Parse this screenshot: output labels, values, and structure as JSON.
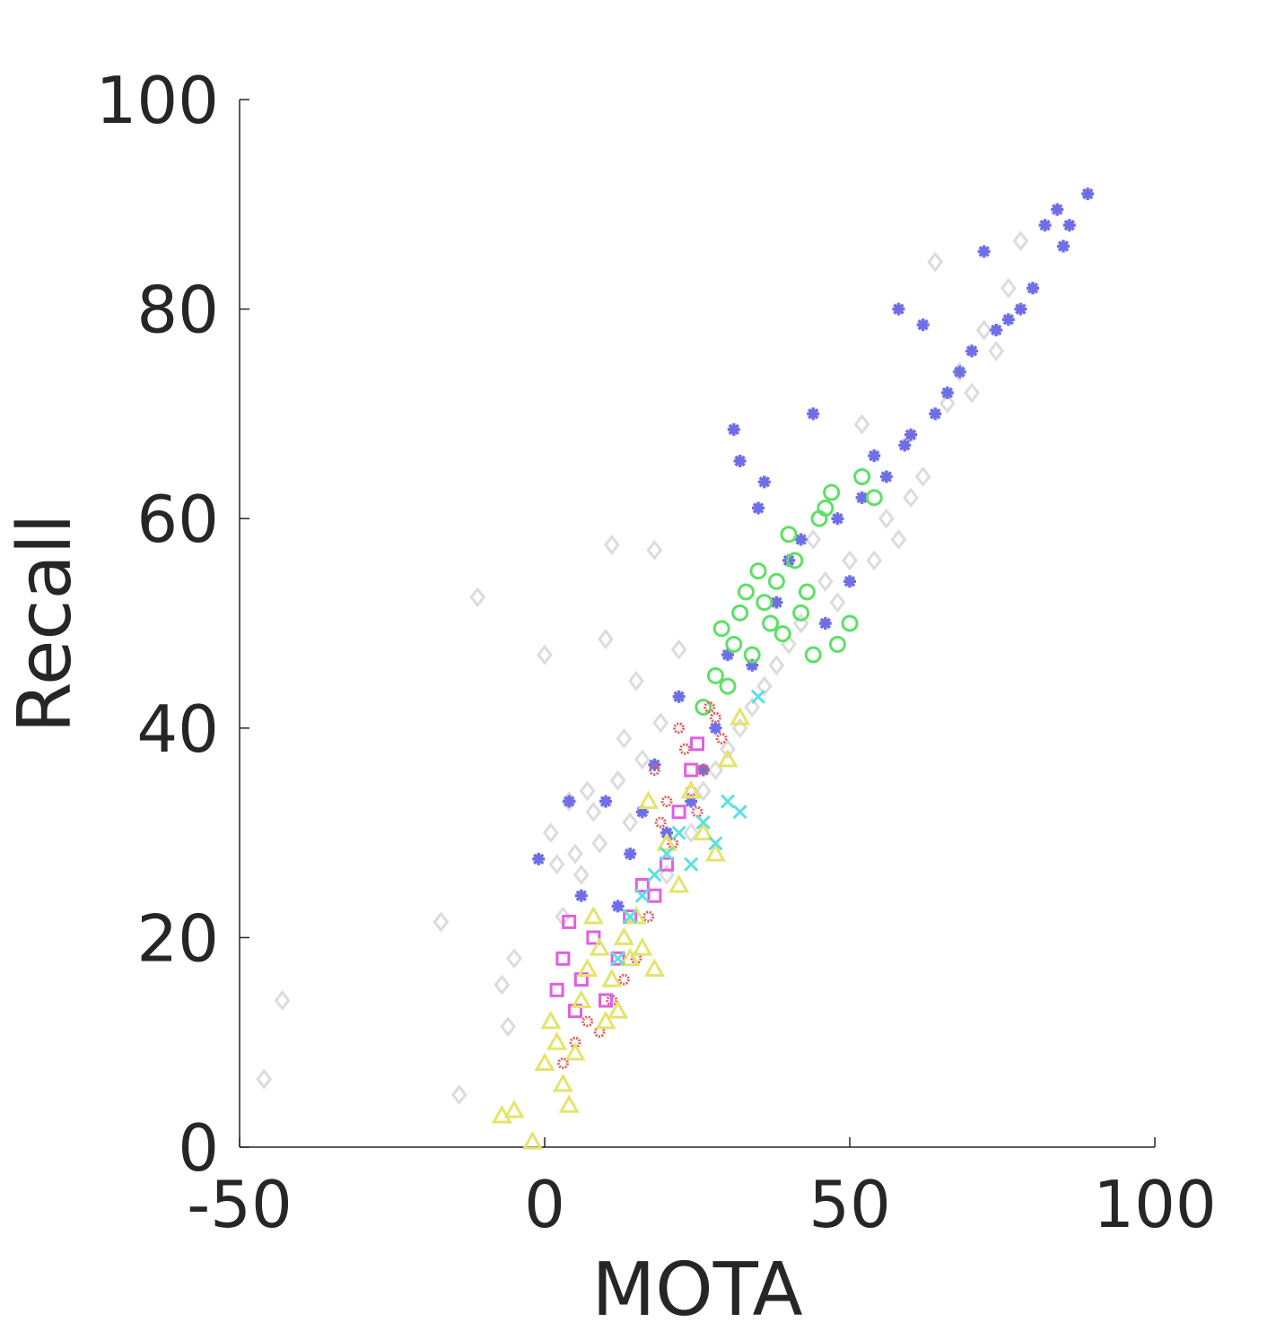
{
  "chart_data": {
    "type": "scatter",
    "title": "",
    "xlabel": "MOTA",
    "ylabel": "Recall",
    "xlim": [
      -50,
      100
    ],
    "ylim": [
      0,
      100
    ],
    "xticks": [
      -50,
      0,
      50,
      100
    ],
    "xtick_labels": [
      "-50",
      "0",
      "50",
      "100"
    ],
    "yticks": [
      0,
      20,
      40,
      60,
      80,
      100
    ],
    "ytick_labels": [
      "0",
      "20",
      "40",
      "60",
      "80",
      "100"
    ],
    "grid": false,
    "legend": "none",
    "series": [
      {
        "marker": "diamond",
        "color": "#dcdcdc",
        "x": [
          -46,
          -43,
          -17,
          -14,
          -11,
          -7,
          -6,
          -5,
          0,
          1,
          2,
          3,
          4,
          5,
          6,
          7,
          8,
          9,
          10,
          11,
          12,
          13,
          14,
          15,
          16,
          18,
          19,
          20,
          22,
          24,
          26,
          28,
          30,
          32,
          34,
          36,
          38,
          40,
          42,
          44,
          46,
          48,
          50,
          52,
          54,
          56,
          58,
          60,
          62,
          64,
          66,
          68,
          70,
          72,
          74,
          76,
          78
        ],
        "y": [
          6.5,
          14,
          21.5,
          5,
          52.5,
          15.5,
          11.5,
          18,
          47,
          30,
          27,
          22,
          33,
          28,
          26,
          34,
          32,
          29,
          48.5,
          57.5,
          35,
          39,
          31,
          44.5,
          37,
          57,
          40.5,
          26,
          47.5,
          30,
          34,
          36,
          38,
          40,
          42,
          44,
          46,
          48,
          50,
          58,
          54,
          52,
          56,
          69,
          56,
          60,
          58,
          62,
          64,
          84.5,
          71,
          74,
          72,
          78,
          76,
          82,
          86.5
        ]
      },
      {
        "marker": "asterisk",
        "color": "#6e6ee6",
        "x": [
          -1,
          4,
          6,
          10,
          12,
          14,
          16,
          18,
          20,
          22,
          24,
          26,
          28,
          30,
          31,
          32,
          34,
          35,
          36,
          38,
          40,
          42,
          44,
          46,
          48,
          50,
          52,
          54,
          56,
          58,
          59,
          60,
          62,
          64,
          66,
          68,
          70,
          72,
          74,
          76,
          78,
          80,
          82,
          84,
          85,
          86,
          89
        ],
        "y": [
          27.5,
          33,
          24,
          33,
          23,
          28,
          32,
          36.5,
          30,
          43,
          33,
          36,
          40,
          47,
          68.5,
          65.5,
          46,
          61,
          63.5,
          52,
          56,
          58,
          70,
          50,
          60,
          54,
          62,
          66,
          64,
          80,
          67,
          68,
          78.5,
          70,
          72,
          74,
          76,
          85.5,
          78,
          79,
          80,
          82,
          88,
          89.5,
          86,
          88,
          91
        ]
      },
      {
        "marker": "circle",
        "color": "#5ee066",
        "x": [
          26,
          28,
          29,
          30,
          31,
          32,
          33,
          34,
          35,
          36,
          37,
          38,
          39,
          40,
          41,
          42,
          43,
          44,
          45,
          46,
          47,
          48,
          50,
          52,
          54
        ],
        "y": [
          42,
          45,
          49.5,
          44,
          48,
          51,
          53,
          47,
          55,
          52,
          50,
          54,
          49,
          58.5,
          56,
          51,
          53,
          47,
          60,
          61,
          62.5,
          48,
          50,
          64,
          62
        ]
      },
      {
        "marker": "flower",
        "color": "#e05c5c",
        "x": [
          3,
          5,
          7,
          9,
          11,
          13,
          15,
          17,
          18,
          19,
          20,
          21,
          22,
          23,
          24,
          25,
          26,
          27,
          28,
          29
        ],
        "y": [
          8,
          10,
          12,
          11,
          14,
          16,
          18,
          22,
          36,
          31,
          33,
          29,
          40,
          38,
          34,
          32,
          36,
          42,
          41,
          39
        ]
      },
      {
        "marker": "square",
        "color": "#e060e0",
        "x": [
          2,
          3,
          4,
          5,
          6,
          8,
          10,
          12,
          14,
          16,
          18,
          20,
          22,
          24,
          25
        ],
        "y": [
          15,
          18,
          21.5,
          13,
          16,
          20,
          14,
          18,
          22,
          25,
          24,
          27,
          32,
          36,
          38.5
        ]
      },
      {
        "marker": "triangle",
        "color": "#e4e46c",
        "x": [
          -7,
          -5,
          -2,
          0,
          1,
          2,
          3,
          4,
          5,
          6,
          7,
          8,
          9,
          10,
          11,
          12,
          13,
          14,
          15,
          16,
          17,
          18,
          20,
          22,
          24,
          26,
          28,
          30,
          32
        ],
        "y": [
          3,
          3.5,
          0.5,
          8,
          12,
          10,
          6,
          4,
          9,
          14,
          17,
          22,
          19,
          12,
          16,
          13,
          20,
          18,
          22,
          19,
          33,
          17,
          29,
          25,
          34,
          30,
          28,
          37,
          41
        ]
      },
      {
        "marker": "x",
        "color": "#5ee0e0",
        "x": [
          12,
          14,
          16,
          18,
          20,
          22,
          24,
          26,
          28,
          30,
          32,
          35
        ],
        "y": [
          18,
          22,
          24,
          26,
          28,
          30,
          27,
          31,
          29,
          33,
          32,
          43
        ]
      }
    ]
  }
}
